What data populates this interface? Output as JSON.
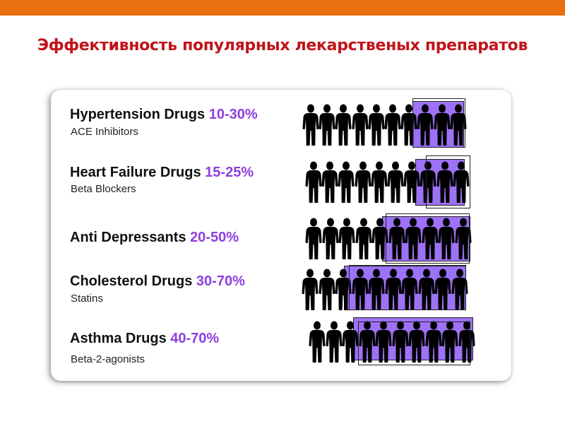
{
  "slide": {
    "title": "Эффективность популярных лекарственых препаратов"
  },
  "colors": {
    "top_bar": "#e8700f",
    "title": "#c0141a",
    "percent": "#8e3ee0",
    "highlight": "#9d72f6",
    "figure": "#000000"
  },
  "icons": {
    "person": "person-silhouette-icon"
  },
  "rows": [
    {
      "name": "Hypertension Drugs",
      "percent": "10-30%",
      "subtitle": "ACE Inhibitors",
      "effective_people": 3,
      "total_people": 10
    },
    {
      "name": "Heart Failure Drugs",
      "percent": "15-25%",
      "subtitle": "Beta Blockers",
      "effective_people": 3,
      "total_people": 10
    },
    {
      "name": "Anti Depressants",
      "percent": "20-50%",
      "subtitle": "",
      "effective_people": 5,
      "total_people": 10
    },
    {
      "name": "Cholesterol Drugs",
      "percent": "30-70%",
      "subtitle": "Statins",
      "effective_people": 7,
      "total_people": 10
    },
    {
      "name": "Asthma Drugs",
      "percent": "40-70%",
      "subtitle": "Beta-2-agonists",
      "effective_people": 7,
      "total_people": 10
    }
  ]
}
